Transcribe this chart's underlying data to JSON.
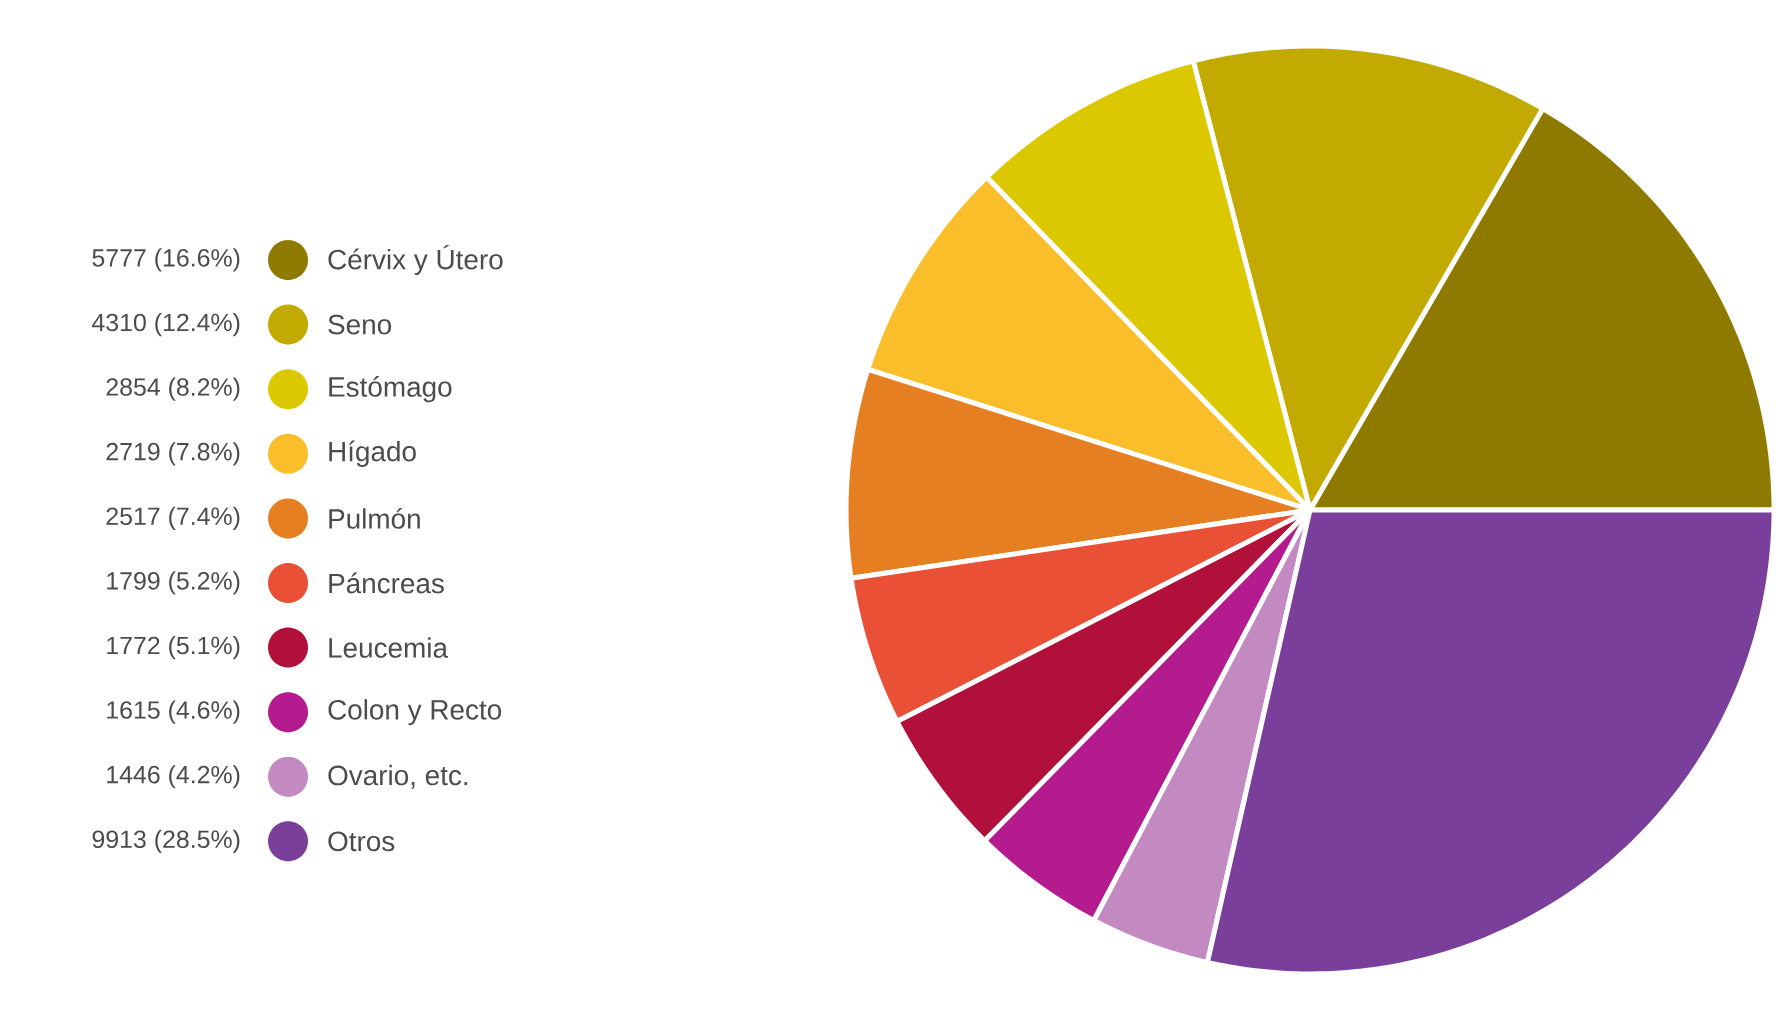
{
  "chart_data": {
    "type": "pie",
    "categories": [
      "Cérvix y Útero",
      "Seno",
      "Estómago",
      "Hígado",
      "Pulmón",
      "Páncreas",
      "Leucemia",
      "Colon y Recto",
      "Ovario, etc.",
      "Otros"
    ],
    "values": [
      5777,
      4310,
      2854,
      2719,
      2517,
      1799,
      1772,
      1615,
      1446,
      9913
    ],
    "value_labels": [
      "5777 (16.6%)",
      "4310 (12.4%)",
      "2854 (8.2%)",
      "2719 (7.8%)",
      "2517 (7.4%)",
      "1799 (5.2%)",
      "1772 (5.1%)",
      "1615 (4.6%)",
      "1446 (4.2%)",
      "9913 (28.5%)"
    ],
    "colors": [
      "#8f7a00",
      "#c2aa00",
      "#dcc800",
      "#f9be2a",
      "#e67e22",
      "#ea5035",
      "#b0103a",
      "#b31b8e",
      "#c38ac2",
      "#7a3f9a"
    ],
    "legend": "left"
  }
}
